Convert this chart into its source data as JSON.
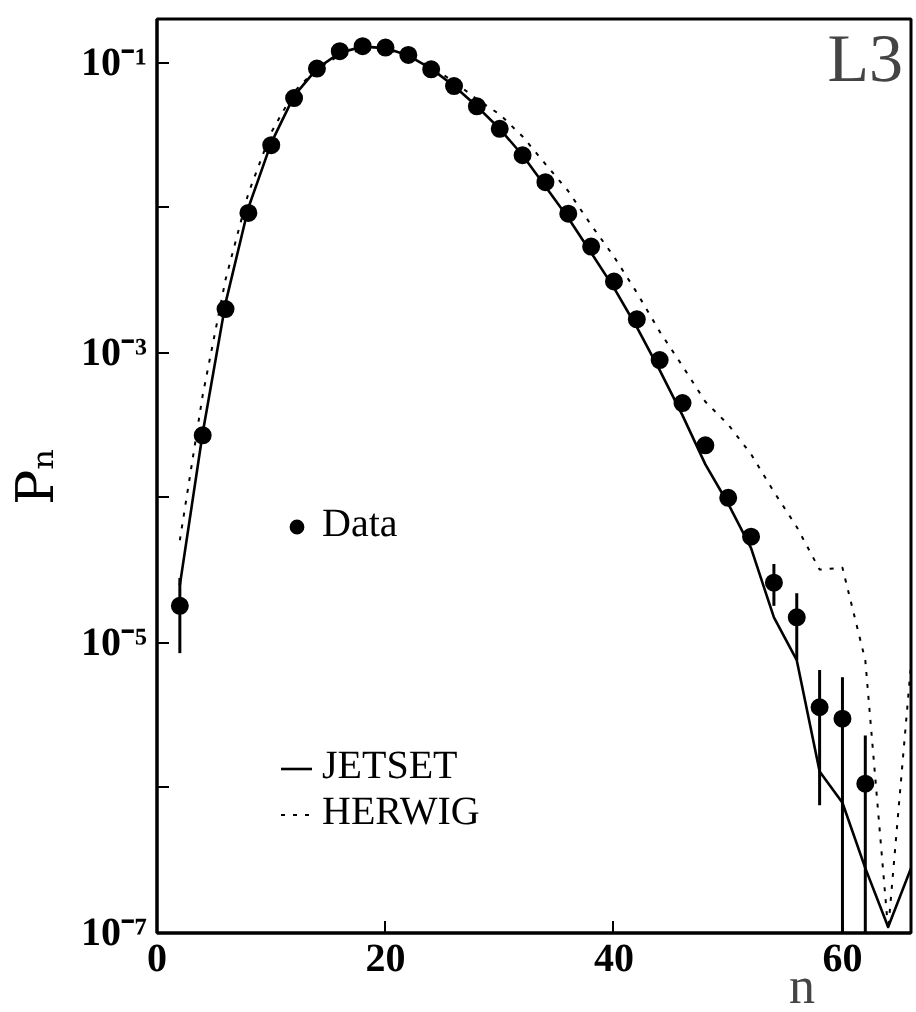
{
  "chart_data": {
    "type": "line",
    "xlabel": "n",
    "ylabel": "Pₙ",
    "annotations": [
      "L3"
    ],
    "log": "y",
    "grid": false,
    "legend": "left",
    "xlim": [
      0,
      66
    ],
    "ylim": [
      1e-07,
      0.2
    ],
    "xticks": [
      0,
      20,
      40,
      60
    ],
    "yticks": [
      {
        "value": 0.1,
        "label": "10⁻¹"
      },
      {
        "value": 0.01,
        "label": null
      },
      {
        "value": 0.001,
        "label": "10⁻³"
      },
      {
        "value": 0.0001,
        "label": null
      },
      {
        "value": 1e-05,
        "label": "10⁻⁵"
      },
      {
        "value": 1e-06,
        "label": null
      },
      {
        "value": 1e-07,
        "label": "10⁻⁷"
      }
    ],
    "series": [
      {
        "name": "Data",
        "type": "scatter",
        "marker": "circle",
        "color": "#000000",
        "x": [
          2,
          4,
          6,
          8,
          10,
          12,
          14,
          16,
          18,
          20,
          22,
          24,
          26,
          28,
          30,
          32,
          34,
          36,
          38,
          40,
          42,
          44,
          46,
          48,
          50,
          52,
          54,
          56,
          58,
          60,
          62
        ],
        "values": [
          1.8e-05,
          0.00027,
          0.002,
          0.0092,
          0.027,
          0.057,
          0.091,
          0.12,
          0.13,
          0.127,
          0.113,
          0.09,
          0.069,
          0.05,
          0.035,
          0.023,
          0.015,
          0.0091,
          0.0054,
          0.0031,
          0.0017,
          0.00089,
          0.00045,
          0.00023,
          0.0001,
          5.4e-05,
          2.6e-05,
          1.5e-05,
          3.6e-06,
          3e-06,
          1.07e-06
        ],
        "errors": [
          [
            8.5e-06,
            2.8e-05
          ],
          null,
          null,
          null,
          null,
          null,
          null,
          null,
          null,
          null,
          null,
          null,
          null,
          null,
          null,
          null,
          null,
          null,
          null,
          null,
          null,
          null,
          null,
          null,
          null,
          null,
          [
            1.8e-05,
            3.5e-05
          ],
          [
            7.6e-06,
            2.2e-05
          ],
          [
            7.6e-07,
            6.5e-06
          ],
          [
            1e-07,
            5.8e-06
          ],
          [
            1e-07,
            2.3e-06
          ]
        ]
      },
      {
        "name": "JETSET",
        "type": "line",
        "line_style": "solid",
        "color": "#000000",
        "x": [
          2,
          4,
          6,
          8,
          10,
          12,
          14,
          16,
          18,
          20,
          22,
          24,
          26,
          28,
          30,
          32,
          34,
          36,
          38,
          40,
          42,
          44,
          46,
          48,
          50,
          52,
          54,
          56,
          58,
          60,
          62,
          64,
          66
        ],
        "values": [
          2.5e-05,
          0.00028,
          0.0022,
          0.01,
          0.028,
          0.059,
          0.091,
          0.117,
          0.129,
          0.126,
          0.112,
          0.091,
          0.069,
          0.05,
          0.035,
          0.023,
          0.014,
          0.0085,
          0.0049,
          0.0028,
          0.0015,
          0.00076,
          0.00037,
          0.00017,
          9.1e-05,
          4.5e-05,
          1.5e-05,
          7.6e-06,
          1.3e-06,
          7.9e-07,
          2.8e-07,
          1.1e-07,
          2.8e-07
        ]
      },
      {
        "name": "HERWIG",
        "type": "line",
        "line_style": "dotted",
        "color": "#000000",
        "x": [
          2,
          4,
          6,
          8,
          10,
          12,
          14,
          16,
          18,
          20,
          22,
          24,
          26,
          28,
          30,
          32,
          34,
          36,
          38,
          40,
          42,
          44,
          46,
          48,
          50,
          52,
          54,
          56,
          58,
          60,
          62,
          64,
          66
        ],
        "values": [
          5.1e-05,
          0.00051,
          0.0032,
          0.0126,
          0.033,
          0.063,
          0.091,
          0.112,
          0.123,
          0.123,
          0.112,
          0.093,
          0.074,
          0.056,
          0.044,
          0.031,
          0.02,
          0.013,
          0.0076,
          0.0046,
          0.0026,
          0.0014,
          0.00081,
          0.00046,
          0.00032,
          0.0002,
          0.00011,
          6.3e-05,
          3.2e-05,
          3.3e-05,
          7.6e-06,
          1.05e-07,
          7.1e-06
        ]
      }
    ]
  }
}
